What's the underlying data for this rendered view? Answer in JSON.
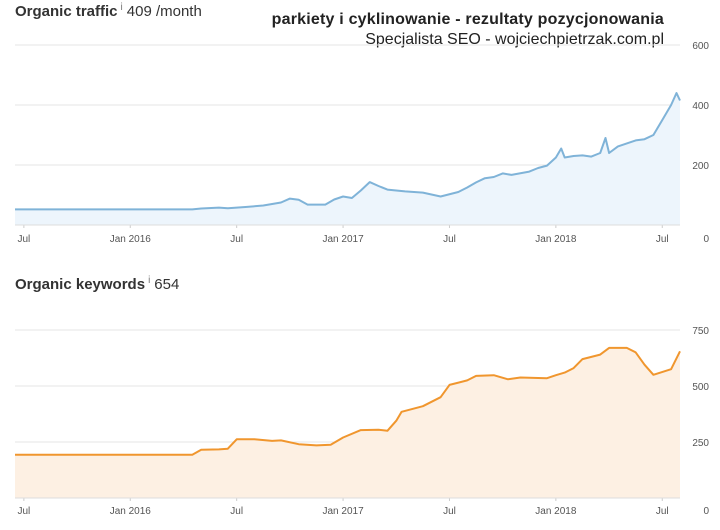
{
  "watermark": {
    "line1": "parkiety i cyklinowanie - rezultaty pozycjonowania",
    "line2": "Specjalista SEO - wojciechpietrzak.com.pl"
  },
  "colors": {
    "traffic_line": "#7fb3d8",
    "traffic_fill": "#edf5fc",
    "keywords_line": "#f0962e",
    "keywords_fill": "#fdf0e3",
    "grid": "#e6e6e6"
  },
  "chart_data": [
    {
      "type": "area",
      "title": "Organic traffic",
      "info": "i",
      "value_label": "409 /month",
      "ylim": [
        0,
        600
      ],
      "yticks": [
        0,
        200,
        400,
        600
      ],
      "ytick_labels": [
        "0",
        "200",
        "400",
        "600"
      ],
      "x_labels": [
        {
          "label": "Jul",
          "t": 0.5
        },
        {
          "label": "Jan 2016",
          "t": 6.5
        },
        {
          "label": "Jul",
          "t": 12.5
        },
        {
          "label": "Jan 2017",
          "t": 18.5
        },
        {
          "label": "Jul",
          "t": 24.5
        },
        {
          "label": "Jan 2018",
          "t": 30.5
        },
        {
          "label": "Jul",
          "t": 36.5
        }
      ],
      "xlim": [
        0,
        37.5
      ],
      "series": [
        {
          "name": "Organic traffic",
          "points": [
            [
              0,
              52
            ],
            [
              4,
              52
            ],
            [
              8,
              52
            ],
            [
              10,
              52
            ],
            [
              10.5,
              55
            ],
            [
              11.5,
              58
            ],
            [
              12,
              56
            ],
            [
              13,
              60
            ],
            [
              14,
              65
            ],
            [
              15,
              75
            ],
            [
              15.5,
              88
            ],
            [
              16,
              84
            ],
            [
              16.5,
              68
            ],
            [
              17.5,
              68
            ],
            [
              18,
              85
            ],
            [
              18.5,
              95
            ],
            [
              19,
              90
            ],
            [
              19.5,
              115
            ],
            [
              20,
              143
            ],
            [
              20.5,
              130
            ],
            [
              21,
              118
            ],
            [
              22,
              112
            ],
            [
              23,
              108
            ],
            [
              24,
              95
            ],
            [
              25,
              110
            ],
            [
              25.5,
              125
            ],
            [
              26,
              142
            ],
            [
              26.5,
              156
            ],
            [
              27,
              160
            ],
            [
              27.5,
              172
            ],
            [
              28,
              167
            ],
            [
              29,
              178
            ],
            [
              29.5,
              190
            ],
            [
              30,
              198
            ],
            [
              30.5,
              225
            ],
            [
              30.8,
              255
            ],
            [
              31,
              225
            ],
            [
              31.5,
              230
            ],
            [
              32,
              232
            ],
            [
              32.5,
              228
            ],
            [
              33,
              240
            ],
            [
              33.3,
              290
            ],
            [
              33.5,
              240
            ],
            [
              34,
              262
            ],
            [
              35,
              282
            ],
            [
              35.5,
              286
            ],
            [
              36,
              300
            ],
            [
              36.5,
              350
            ],
            [
              37,
              400
            ],
            [
              37.3,
              440
            ],
            [
              37.5,
              415
            ]
          ]
        }
      ]
    },
    {
      "type": "area",
      "title": "Organic keywords",
      "info": "i",
      "value_label": "654",
      "ylim": [
        0,
        750
      ],
      "yticks": [
        0,
        250,
        500,
        750
      ],
      "ytick_labels": [
        "0",
        "250",
        "500",
        "750"
      ],
      "x_labels": [
        {
          "label": "Jul",
          "t": 0.5
        },
        {
          "label": "Jan 2016",
          "t": 6.5
        },
        {
          "label": "Jul",
          "t": 12.5
        },
        {
          "label": "Jan 2017",
          "t": 18.5
        },
        {
          "label": "Jul",
          "t": 24.5
        },
        {
          "label": "Jan 2018",
          "t": 30.5
        },
        {
          "label": "Jul",
          "t": 36.5
        }
      ],
      "xlim": [
        0,
        37.5
      ],
      "series": [
        {
          "name": "Organic keywords",
          "points": [
            [
              0,
              193
            ],
            [
              5,
              193
            ],
            [
              10,
              193
            ],
            [
              10.5,
              215
            ],
            [
              11.5,
              217
            ],
            [
              12,
              220
            ],
            [
              12.5,
              262
            ],
            [
              13.5,
              262
            ],
            [
              14.5,
              255
            ],
            [
              15,
              257
            ],
            [
              16,
              240
            ],
            [
              17,
              235
            ],
            [
              17.8,
              238
            ],
            [
              18.5,
              270
            ],
            [
              19.5,
              303
            ],
            [
              20.5,
              305
            ],
            [
              21,
              300
            ],
            [
              21.5,
              345
            ],
            [
              21.8,
              385
            ],
            [
              23,
              410
            ],
            [
              24,
              450
            ],
            [
              24.5,
              505
            ],
            [
              25.5,
              525
            ],
            [
              26,
              545
            ],
            [
              27,
              548
            ],
            [
              27.8,
              530
            ],
            [
              28.5,
              538
            ],
            [
              30,
              535
            ],
            [
              30.5,
              548
            ],
            [
              31,
              560
            ],
            [
              31.5,
              580
            ],
            [
              32,
              620
            ],
            [
              33,
              640
            ],
            [
              33.5,
              670
            ],
            [
              34.5,
              670
            ],
            [
              35,
              650
            ],
            [
              35.5,
              595
            ],
            [
              36,
              550
            ],
            [
              37,
              575
            ],
            [
              37.5,
              655
            ]
          ]
        }
      ]
    }
  ]
}
